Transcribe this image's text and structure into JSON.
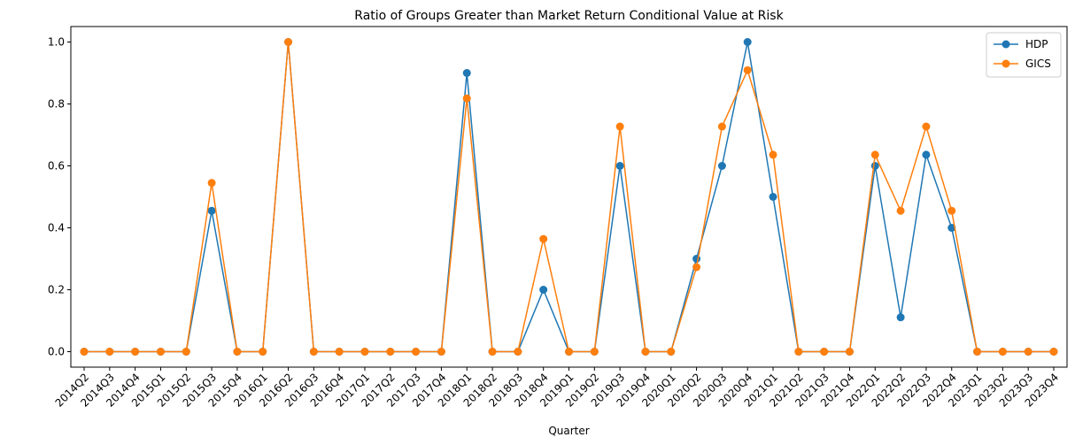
{
  "chart_data": {
    "type": "line",
    "title": "Ratio of Groups Greater than Market Return Conditional Value at Risk",
    "xlabel": "Quarter",
    "ylabel": "",
    "ylim": [
      -0.05,
      1.05
    ],
    "yticks": [
      "0.0",
      "0.2",
      "0.4",
      "0.6",
      "0.8",
      "1.0"
    ],
    "legend_position": "top-right",
    "grid": false,
    "categories": [
      "2014Q2",
      "2014Q3",
      "2014Q4",
      "2015Q1",
      "2015Q2",
      "2015Q3",
      "2015Q4",
      "2016Q1",
      "2016Q2",
      "2016Q3",
      "2016Q4",
      "2017Q1",
      "2017Q2",
      "2017Q3",
      "2017Q4",
      "2018Q1",
      "2018Q2",
      "2018Q3",
      "2018Q4",
      "2019Q1",
      "2019Q2",
      "2019Q3",
      "2019Q4",
      "2020Q1",
      "2020Q2",
      "2020Q3",
      "2020Q4",
      "2021Q1",
      "2021Q2",
      "2021Q3",
      "2021Q4",
      "2022Q1",
      "2022Q2",
      "2022Q3",
      "2022Q4",
      "2023Q1",
      "2023Q2",
      "2023Q3",
      "2023Q4"
    ],
    "series": [
      {
        "name": "HDP",
        "color": "#1f77b4",
        "values": [
          0,
          0,
          0,
          0,
          0,
          0.455,
          0,
          0,
          1.0,
          0,
          0,
          0,
          0,
          0,
          0,
          0.9,
          0,
          0,
          0.2,
          0,
          0,
          0.6,
          0,
          0,
          0.3,
          0.6,
          1.0,
          0.5,
          0,
          0,
          0,
          0.6,
          0.111,
          0.636,
          0.4,
          0,
          0,
          0,
          0
        ]
      },
      {
        "name": "GICS",
        "color": "#ff7f0e",
        "values": [
          0,
          0,
          0,
          0,
          0,
          0.545,
          0,
          0,
          1.0,
          0,
          0,
          0,
          0,
          0,
          0,
          0.818,
          0,
          0,
          0.364,
          0,
          0,
          0.727,
          0,
          0,
          0.273,
          0.727,
          0.909,
          0.636,
          0,
          0,
          0,
          0.636,
          0.455,
          0.727,
          0.455,
          0,
          0,
          0,
          0
        ]
      }
    ]
  }
}
